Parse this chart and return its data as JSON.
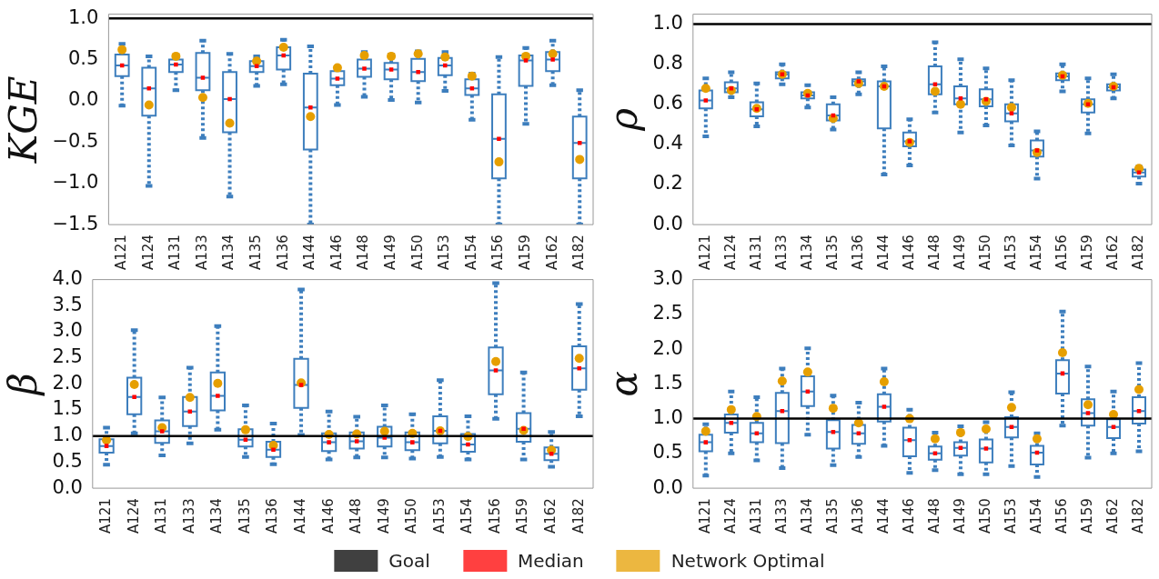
{
  "chart_data": [
    {
      "type": "box",
      "ylabel": "KGE",
      "categories": [
        "A121",
        "A124",
        "A131",
        "A133",
        "A134",
        "A135",
        "A136",
        "A144",
        "A146",
        "A148",
        "A149",
        "A150",
        "A153",
        "A154",
        "A156",
        "A159",
        "A162",
        "A182"
      ],
      "ylim": [
        -1.5,
        1.05
      ],
      "yticks": [
        {
          "value": -1.5,
          "label": "−1.5"
        },
        {
          "value": -1,
          "label": "−1.0"
        },
        {
          "value": -0.5,
          "label": "−0.5"
        },
        {
          "value": 0,
          "label": "0.0"
        },
        {
          "value": 0.5,
          "label": "0.5"
        },
        {
          "value": 1,
          "label": "1.0"
        }
      ],
      "legend": "bottom",
      "ref_lines": [
        {
          "axis": "y",
          "value": 1,
          "label": "Goal",
          "color": "#000000"
        }
      ],
      "series": [
        {
          "type": "box",
          "color": "#3d7ebd",
          "boxes": [
            {
              "low": -0.06,
              "q1": 0.3,
              "median": 0.43,
              "q3": 0.56,
              "high": 0.69
            },
            {
              "low": -1.03,
              "q1": -0.18,
              "median": 0.15,
              "q3": 0.4,
              "high": 0.54
            },
            {
              "low": 0.13,
              "q1": 0.35,
              "median": 0.44,
              "q3": 0.5,
              "high": 0.55
            },
            {
              "low": -0.45,
              "q1": 0.13,
              "median": 0.28,
              "q3": 0.58,
              "high": 0.73
            },
            {
              "low": -1.16,
              "q1": -0.38,
              "median": 0.02,
              "q3": 0.35,
              "high": 0.57
            },
            {
              "low": 0.18,
              "q1": 0.35,
              "median": 0.42,
              "q3": 0.48,
              "high": 0.54
            },
            {
              "low": 0.2,
              "q1": 0.38,
              "median": 0.55,
              "q3": 0.65,
              "high": 0.74
            },
            {
              "low": -1.5,
              "q1": -0.59,
              "median": -0.08,
              "q3": 0.33,
              "high": 0.66
            },
            {
              "low": -0.05,
              "q1": 0.19,
              "median": 0.27,
              "q3": 0.36,
              "high": 0.41
            },
            {
              "low": 0.05,
              "q1": 0.29,
              "median": 0.39,
              "q3": 0.5,
              "high": 0.59
            },
            {
              "low": 0.01,
              "q1": 0.26,
              "median": 0.38,
              "q3": 0.46,
              "high": 0.56
            },
            {
              "low": -0.02,
              "q1": 0.24,
              "median": 0.35,
              "q3": 0.51,
              "high": 0.6
            },
            {
              "low": 0.12,
              "q1": 0.31,
              "median": 0.43,
              "q3": 0.52,
              "high": 0.59
            },
            {
              "low": -0.23,
              "q1": 0.07,
              "median": 0.15,
              "q3": 0.26,
              "high": 0.33
            },
            {
              "low": -1.5,
              "q1": -0.94,
              "median": -0.46,
              "q3": 0.08,
              "high": 0.53
            },
            {
              "low": -0.28,
              "q1": 0.18,
              "median": 0.49,
              "q3": 0.55,
              "high": 0.64
            },
            {
              "low": 0.19,
              "q1": 0.36,
              "median": 0.5,
              "q3": 0.59,
              "high": 0.73
            },
            {
              "low": -1.5,
              "q1": -0.94,
              "median": -0.51,
              "q3": -0.19,
              "high": 0.13
            }
          ]
        },
        {
          "type": "scatter",
          "name": "Median",
          "color": "#ff0000",
          "marker": "square",
          "x": [
            "A121",
            "A124",
            "A131",
            "A133",
            "A134",
            "A135",
            "A136",
            "A144",
            "A146",
            "A148",
            "A149",
            "A150",
            "A153",
            "A154",
            "A156",
            "A159",
            "A162",
            "A182"
          ],
          "values": [
            0.43,
            0.15,
            0.44,
            0.28,
            0.02,
            0.42,
            0.55,
            -0.08,
            0.27,
            0.39,
            0.38,
            0.35,
            0.43,
            0.15,
            -0.46,
            0.49,
            0.5,
            -0.51
          ]
        },
        {
          "type": "scatter",
          "name": "Network Optimal",
          "color": "#e69f00",
          "x": [
            "A121",
            "A124",
            "A131",
            "A133",
            "A134",
            "A135",
            "A136",
            "A144",
            "A146",
            "A148",
            "A149",
            "A150",
            "A153",
            "A154",
            "A156",
            "A159",
            "A162",
            "A182"
          ],
          "values": [
            0.62,
            -0.05,
            0.54,
            0.04,
            -0.27,
            0.48,
            0.65,
            -0.19,
            0.4,
            0.55,
            0.54,
            0.57,
            0.53,
            0.3,
            -0.74,
            0.54,
            0.57,
            -0.71
          ]
        }
      ]
    },
    {
      "type": "box",
      "ylabel": "ρ",
      "categories": [
        "A121",
        "A124",
        "A131",
        "A133",
        "A134",
        "A135",
        "A136",
        "A144",
        "A146",
        "A148",
        "A149",
        "A150",
        "A153",
        "A154",
        "A156",
        "A159",
        "A162",
        "A182"
      ],
      "ylim": [
        0,
        1.05
      ],
      "yticks": [
        {
          "value": 0,
          "label": "0.0"
        },
        0.2,
        0.4,
        0.6,
        0.8,
        {
          "value": 1,
          "label": "1.0"
        }
      ],
      "ref_lines": [
        {
          "axis": "y",
          "value": 1,
          "color": "#000000"
        }
      ],
      "series": [
        {
          "type": "box",
          "color": "#3d7ebd",
          "boxes": [
            {
              "low": 0.44,
              "q1": 0.58,
              "median": 0.62,
              "q3": 0.67,
              "high": 0.73
            },
            {
              "low": 0.635,
              "q1": 0.66,
              "median": 0.68,
              "q3": 0.71,
              "high": 0.76
            },
            {
              "low": 0.49,
              "q1": 0.54,
              "median": 0.575,
              "q3": 0.61,
              "high": 0.705
            },
            {
              "low": 0.7,
              "q1": 0.73,
              "median": 0.75,
              "q3": 0.76,
              "high": 0.8
            },
            {
              "low": 0.585,
              "q1": 0.63,
              "median": 0.645,
              "q3": 0.66,
              "high": 0.695
            },
            {
              "low": 0.475,
              "q1": 0.52,
              "median": 0.545,
              "q3": 0.6,
              "high": 0.635
            },
            {
              "low": 0.65,
              "q1": 0.695,
              "median": 0.715,
              "q3": 0.725,
              "high": 0.76
            },
            {
              "low": 0.25,
              "q1": 0.48,
              "median": 0.69,
              "q3": 0.715,
              "high": 0.79
            },
            {
              "low": 0.295,
              "q1": 0.39,
              "median": 0.415,
              "q3": 0.46,
              "high": 0.525
            },
            {
              "low": 0.56,
              "q1": 0.65,
              "median": 0.7,
              "q3": 0.79,
              "high": 0.91
            },
            {
              "low": 0.46,
              "q1": 0.6,
              "median": 0.63,
              "q3": 0.69,
              "high": 0.825
            },
            {
              "low": 0.495,
              "q1": 0.59,
              "median": 0.625,
              "q3": 0.675,
              "high": 0.78
            },
            {
              "low": 0.395,
              "q1": 0.515,
              "median": 0.555,
              "q3": 0.6,
              "high": 0.72
            },
            {
              "low": 0.23,
              "q1": 0.34,
              "median": 0.37,
              "q3": 0.42,
              "high": 0.465
            },
            {
              "low": 0.665,
              "q1": 0.72,
              "median": 0.74,
              "q3": 0.755,
              "high": 0.8
            },
            {
              "low": 0.455,
              "q1": 0.56,
              "median": 0.6,
              "q3": 0.625,
              "high": 0.73
            },
            {
              "low": 0.63,
              "q1": 0.67,
              "median": 0.685,
              "q3": 0.7,
              "high": 0.75
            },
            {
              "low": 0.205,
              "q1": 0.24,
              "median": 0.26,
              "q3": 0.275,
              "high": 0.29
            }
          ]
        },
        {
          "type": "scatter",
          "color": "#ff0000",
          "marker": "square",
          "x": [
            "A121",
            "A124",
            "A131",
            "A133",
            "A134",
            "A135",
            "A136",
            "A144",
            "A146",
            "A148",
            "A149",
            "A150",
            "A153",
            "A154",
            "A156",
            "A159",
            "A162",
            "A182"
          ],
          "values": [
            0.62,
            0.68,
            0.575,
            0.75,
            0.645,
            0.545,
            0.715,
            0.69,
            0.415,
            0.7,
            0.63,
            0.625,
            0.555,
            0.37,
            0.74,
            0.6,
            0.685,
            0.26
          ]
        },
        {
          "type": "scatter",
          "color": "#e69f00",
          "x": [
            "A121",
            "A124",
            "A131",
            "A133",
            "A134",
            "A135",
            "A136",
            "A144",
            "A146",
            "A148",
            "A149",
            "A150",
            "A153",
            "A154",
            "A156",
            "A159",
            "A162",
            "A182"
          ],
          "values": [
            0.68,
            0.67,
            0.58,
            0.75,
            0.655,
            0.53,
            0.705,
            0.69,
            0.41,
            0.665,
            0.6,
            0.615,
            0.585,
            0.36,
            0.745,
            0.605,
            0.69,
            0.28
          ]
        }
      ]
    },
    {
      "type": "box",
      "ylabel": "β",
      "categories": [
        "A121",
        "A124",
        "A131",
        "A133",
        "A134",
        "A135",
        "A136",
        "A144",
        "A146",
        "A148",
        "A149",
        "A150",
        "A153",
        "A154",
        "A156",
        "A159",
        "A162",
        "A182"
      ],
      "ylim": [
        0,
        4
      ],
      "yticks": [
        {
          "value": 0,
          "label": "0.0"
        },
        0.5,
        {
          "value": 1,
          "label": "1.0"
        },
        1.5,
        {
          "value": 2,
          "label": "2.0"
        },
        2.5,
        {
          "value": 3,
          "label": "3.0"
        },
        3.5,
        {
          "value": 4,
          "label": "4.0"
        }
      ],
      "ref_lines": [
        {
          "axis": "y",
          "value": 1,
          "color": "#000000"
        }
      ],
      "series": [
        {
          "type": "box",
          "color": "#3d7ebd",
          "boxes": [
            {
              "low": 0.45,
              "q1": 0.68,
              "median": 0.81,
              "q3": 0.94,
              "high": 1.16
            },
            {
              "low": 1.05,
              "q1": 1.42,
              "median": 1.75,
              "q3": 2.12,
              "high": 3.03
            },
            {
              "low": 0.63,
              "q1": 0.87,
              "median": 1.09,
              "q3": 1.3,
              "high": 1.74
            },
            {
              "low": 0.86,
              "q1": 1.19,
              "median": 1.47,
              "q3": 1.75,
              "high": 2.31
            },
            {
              "low": 1.12,
              "q1": 1.49,
              "median": 1.77,
              "q3": 2.22,
              "high": 3.11
            },
            {
              "low": 0.6,
              "q1": 0.8,
              "median": 0.93,
              "q3": 1.13,
              "high": 1.59
            },
            {
              "low": 0.46,
              "q1": 0.6,
              "median": 0.74,
              "q3": 0.89,
              "high": 1.24
            },
            {
              "low": 1.02,
              "q1": 1.54,
              "median": 1.98,
              "q3": 2.48,
              "high": 3.81
            },
            {
              "low": 0.55,
              "q1": 0.71,
              "median": 0.88,
              "q3": 1.05,
              "high": 1.47
            },
            {
              "low": 0.59,
              "q1": 0.76,
              "median": 0.9,
              "q3": 1.07,
              "high": 1.37
            },
            {
              "low": 0.59,
              "q1": 0.8,
              "median": 0.97,
              "q3": 1.18,
              "high": 1.59
            },
            {
              "low": 0.57,
              "q1": 0.73,
              "median": 0.88,
              "q3": 1.07,
              "high": 1.42
            },
            {
              "low": 0.6,
              "q1": 0.86,
              "median": 1.1,
              "q3": 1.38,
              "high": 2.07
            },
            {
              "low": 0.55,
              "q1": 0.7,
              "median": 0.84,
              "q3": 1.04,
              "high": 1.38
            },
            {
              "low": 1.33,
              "q1": 1.8,
              "median": 2.26,
              "q3": 2.7,
              "high": 3.93
            },
            {
              "low": 0.55,
              "q1": 0.89,
              "median": 1.14,
              "q3": 1.44,
              "high": 2.22
            },
            {
              "low": 0.41,
              "q1": 0.54,
              "median": 0.66,
              "q3": 0.78,
              "high": 1.08
            },
            {
              "low": 1.38,
              "q1": 1.89,
              "median": 2.3,
              "q3": 2.72,
              "high": 3.53
            }
          ]
        },
        {
          "type": "scatter",
          "color": "#ff0000",
          "marker": "square",
          "x": [
            "A121",
            "A124",
            "A131",
            "A133",
            "A134",
            "A135",
            "A136",
            "A144",
            "A146",
            "A148",
            "A149",
            "A150",
            "A153",
            "A154",
            "A156",
            "A159",
            "A162",
            "A182"
          ],
          "values": [
            0.81,
            1.75,
            1.09,
            1.47,
            1.77,
            0.93,
            0.74,
            1.98,
            0.88,
            0.9,
            0.97,
            0.88,
            1.1,
            0.84,
            2.26,
            1.14,
            0.66,
            2.3
          ]
        },
        {
          "type": "scatter",
          "color": "#e69f00",
          "x": [
            "A121",
            "A124",
            "A131",
            "A133",
            "A134",
            "A135",
            "A136",
            "A144",
            "A146",
            "A148",
            "A149",
            "A150",
            "A153",
            "A154",
            "A156",
            "A159",
            "A162",
            "A182"
          ],
          "values": [
            0.92,
            1.99,
            1.16,
            1.74,
            2.01,
            1.12,
            0.82,
            2.02,
            1.03,
            1.04,
            1.09,
            1.05,
            1.1,
            0.99,
            2.43,
            1.11,
            0.73,
            2.49
          ]
        }
      ]
    },
    {
      "type": "box",
      "ylabel": "α",
      "categories": [
        "A121",
        "A124",
        "A131",
        "A133",
        "A134",
        "A135",
        "A136",
        "A144",
        "A146",
        "A148",
        "A149",
        "A150",
        "A153",
        "A154",
        "A156",
        "A159",
        "A162",
        "A182"
      ],
      "ylim": [
        0,
        3
      ],
      "yticks": [
        {
          "value": 0,
          "label": "0.0"
        },
        0.5,
        {
          "value": 1,
          "label": "1.0"
        },
        1.5,
        {
          "value": 2,
          "label": "2.0"
        },
        2.5,
        {
          "value": 3,
          "label": "3.0"
        }
      ],
      "ref_lines": [
        {
          "axis": "y",
          "value": 1,
          "color": "#000000"
        }
      ],
      "series": [
        {
          "type": "box",
          "color": "#3d7ebd",
          "boxes": [
            {
              "low": 0.18,
              "q1": 0.53,
              "median": 0.66,
              "q3": 0.77,
              "high": 0.92
            },
            {
              "low": 0.5,
              "q1": 0.8,
              "median": 0.94,
              "q3": 1.06,
              "high": 1.39
            },
            {
              "low": 0.4,
              "q1": 0.66,
              "median": 0.79,
              "q3": 0.94,
              "high": 1.31
            },
            {
              "low": 0.29,
              "q1": 0.65,
              "median": 1.11,
              "q3": 1.37,
              "high": 1.72
            },
            {
              "low": 0.77,
              "q1": 1.18,
              "median": 1.39,
              "q3": 1.61,
              "high": 2.01
            },
            {
              "low": 0.33,
              "q1": 0.57,
              "median": 0.81,
              "q3": 0.98,
              "high": 1.33
            },
            {
              "low": 0.45,
              "q1": 0.64,
              "median": 0.79,
              "q3": 0.91,
              "high": 1.23
            },
            {
              "low": 0.61,
              "q1": 0.96,
              "median": 1.17,
              "q3": 1.35,
              "high": 1.72
            },
            {
              "low": 0.22,
              "q1": 0.46,
              "median": 0.69,
              "q3": 0.87,
              "high": 1.13
            },
            {
              "low": 0.26,
              "q1": 0.41,
              "median": 0.5,
              "q3": 0.6,
              "high": 0.8
            },
            {
              "low": 0.2,
              "q1": 0.47,
              "median": 0.58,
              "q3": 0.66,
              "high": 0.89
            },
            {
              "low": 0.2,
              "q1": 0.37,
              "median": 0.57,
              "q3": 0.7,
              "high": 0.95
            },
            {
              "low": 0.32,
              "q1": 0.73,
              "median": 0.88,
              "q3": 1.02,
              "high": 1.38
            },
            {
              "low": 0.16,
              "q1": 0.34,
              "median": 0.51,
              "q3": 0.61,
              "high": 0.79
            },
            {
              "low": 0.9,
              "q1": 1.36,
              "median": 1.65,
              "q3": 1.84,
              "high": 2.54
            },
            {
              "low": 0.44,
              "q1": 0.9,
              "median": 1.08,
              "q3": 1.28,
              "high": 1.75
            },
            {
              "low": 0.5,
              "q1": 0.72,
              "median": 0.88,
              "q3": 0.99,
              "high": 1.39
            },
            {
              "low": 0.53,
              "q1": 0.93,
              "median": 1.11,
              "q3": 1.31,
              "high": 1.8
            }
          ]
        },
        {
          "type": "scatter",
          "color": "#ff0000",
          "marker": "square",
          "x": [
            "A121",
            "A124",
            "A131",
            "A133",
            "A134",
            "A135",
            "A136",
            "A144",
            "A146",
            "A148",
            "A149",
            "A150",
            "A153",
            "A154",
            "A156",
            "A159",
            "A162",
            "A182"
          ],
          "values": [
            0.66,
            0.94,
            0.79,
            1.11,
            1.39,
            0.81,
            0.79,
            1.17,
            0.69,
            0.5,
            0.58,
            0.57,
            0.88,
            0.51,
            1.65,
            1.08,
            0.88,
            1.11
          ]
        },
        {
          "type": "scatter",
          "color": "#e69f00",
          "x": [
            "A121",
            "A124",
            "A131",
            "A133",
            "A134",
            "A135",
            "A136",
            "A144",
            "A146",
            "A148",
            "A149",
            "A150",
            "A153",
            "A154",
            "A156",
            "A159",
            "A162",
            "A182"
          ],
          "values": [
            0.82,
            1.13,
            1.03,
            1.54,
            1.67,
            1.15,
            0.94,
            1.53,
            1.0,
            0.71,
            0.8,
            0.85,
            1.16,
            0.71,
            1.95,
            1.2,
            1.06,
            1.42
          ]
        }
      ]
    }
  ]
}
